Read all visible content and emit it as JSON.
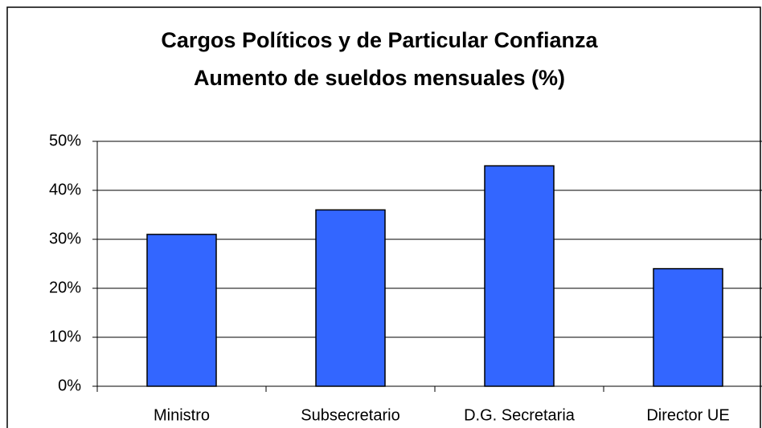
{
  "chart_data": {
    "type": "bar",
    "title": [
      "Cargos Políticos y de Particular Confianza",
      "Aumento de sueldos mensuales (%)"
    ],
    "categories": [
      "Ministro",
      "Subsecretario",
      "D.G. Secretaria",
      "Director UE"
    ],
    "values": [
      31,
      36,
      45,
      24
    ],
    "color": "#3366ff",
    "ylim": [
      0,
      50
    ],
    "yticks": [
      {
        "value": 0,
        "label": "0%"
      },
      {
        "value": 10,
        "label": "10%"
      },
      {
        "value": 20,
        "label": "20%"
      },
      {
        "value": 30,
        "label": "30%"
      },
      {
        "value": 40,
        "label": "40%"
      },
      {
        "value": 50,
        "label": "50%"
      }
    ],
    "grid": true
  }
}
